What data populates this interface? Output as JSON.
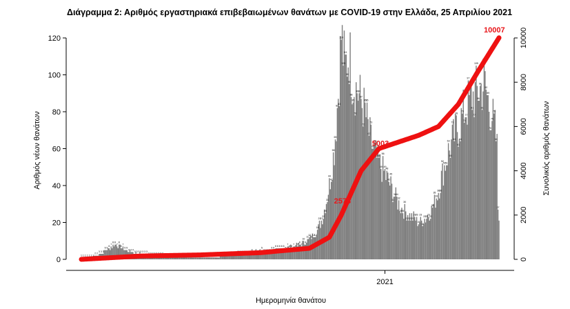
{
  "chart_data": {
    "type": "bar",
    "title": "Διάγραμμα 2: Αριθμός εργαστηριακά επιβεβαιωμένων θανάτων με COVID-19 στην Ελλάδα, 25 Απριλίου 2021",
    "xlabel": "Ημερομηνία θανάτου",
    "ylabel": "Αριθμός νέων θανάτων",
    "y2label": "Συνολικός αριθμός θανάτων",
    "ylim": [
      0,
      125
    ],
    "y2lim": [
      0,
      10416
    ],
    "yticks": [
      "0",
      "20",
      "40",
      "60",
      "80",
      "100",
      "120"
    ],
    "y2ticks": [
      "0",
      "2000",
      "4000",
      "6000",
      "8000",
      "10000"
    ],
    "x_tick_labels": [
      "2021"
    ],
    "x_tick_day_index": 306,
    "grid": false,
    "legend": "none",
    "colors": {
      "bars": "#7f7f7f",
      "cumulative_line": "#ee1111",
      "annotations": "#e8161a"
    },
    "daily_deaths": {
      "start_day_index": 0,
      "count": 422,
      "description_of_shape": "near-zero first wave (~Mar–Jun 2020), low summer, second wave peaking ~121 in mid-Nov 2020, trough ~20 in Feb 2021, third wave ~96 in Apr 2021",
      "anchors": [
        [
          0,
          0
        ],
        [
          10,
          1
        ],
        [
          20,
          3
        ],
        [
          28,
          6
        ],
        [
          35,
          8
        ],
        [
          42,
          6
        ],
        [
          50,
          4
        ],
        [
          60,
          3
        ],
        [
          75,
          2
        ],
        [
          90,
          1
        ],
        [
          110,
          1
        ],
        [
          130,
          1
        ],
        [
          150,
          2
        ],
        [
          165,
          3
        ],
        [
          180,
          4
        ],
        [
          195,
          5
        ],
        [
          205,
          6
        ],
        [
          215,
          7
        ],
        [
          225,
          9
        ],
        [
          232,
          12
        ],
        [
          238,
          16
        ],
        [
          244,
          24
        ],
        [
          250,
          40
        ],
        [
          255,
          60
        ],
        [
          259,
          90
        ],
        [
          262,
          121
        ],
        [
          266,
          103
        ],
        [
          270,
          112
        ],
        [
          274,
          96
        ],
        [
          278,
          92
        ],
        [
          282,
          86
        ],
        [
          286,
          80
        ],
        [
          290,
          68
        ],
        [
          294,
          60
        ],
        [
          298,
          54
        ],
        [
          302,
          50
        ],
        [
          306,
          46
        ],
        [
          310,
          42
        ],
        [
          314,
          37
        ],
        [
          318,
          32
        ],
        [
          322,
          28
        ],
        [
          326,
          26
        ],
        [
          330,
          24
        ],
        [
          334,
          23
        ],
        [
          338,
          21
        ],
        [
          342,
          20
        ],
        [
          346,
          22
        ],
        [
          350,
          24
        ],
        [
          354,
          28
        ],
        [
          358,
          34
        ],
        [
          362,
          42
        ],
        [
          366,
          50
        ],
        [
          370,
          58
        ],
        [
          374,
          64
        ],
        [
          378,
          70
        ],
        [
          382,
          74
        ],
        [
          386,
          80
        ],
        [
          390,
          84
        ],
        [
          394,
          88
        ],
        [
          398,
          90
        ],
        [
          402,
          92
        ],
        [
          406,
          96
        ],
        [
          410,
          86
        ],
        [
          414,
          78
        ],
        [
          417,
          70
        ],
        [
          419,
          60
        ],
        [
          420,
          28
        ],
        [
          421,
          25
        ]
      ]
    },
    "cumulative_deaths": {
      "final_total": 10007,
      "anchors": [
        [
          0,
          0
        ],
        [
          60,
          150
        ],
        [
          120,
          200
        ],
        [
          180,
          300
        ],
        [
          230,
          500
        ],
        [
          250,
          1000
        ],
        [
          262,
          2000
        ],
        [
          272,
          3000
        ],
        [
          282,
          4000
        ],
        [
          300,
          5003
        ],
        [
          340,
          5600
        ],
        [
          360,
          6000
        ],
        [
          380,
          7000
        ],
        [
          400,
          8500
        ],
        [
          421,
          10007
        ]
      ]
    },
    "annotations": [
      {
        "text": "2578",
        "day_index": 270,
        "value": 2578
      },
      {
        "text": "5003",
        "day_index": 300,
        "value": 5003
      },
      {
        "text": "10007",
        "day_index": 421,
        "value": 10007
      }
    ]
  }
}
